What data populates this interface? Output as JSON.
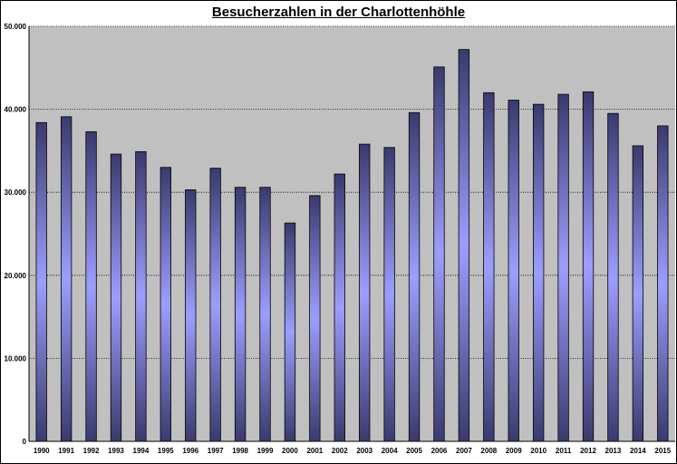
{
  "chart_data": {
    "type": "bar",
    "title": "Besucherzahlen in der Charlottenhöhle",
    "xlabel": "",
    "ylabel": "",
    "categories": [
      "1990",
      "1991",
      "1992",
      "1993",
      "1994",
      "1995",
      "1996",
      "1997",
      "1998",
      "1999",
      "2000",
      "2001",
      "2002",
      "2003",
      "2004",
      "2005",
      "2006",
      "2007",
      "2008",
      "2009",
      "2010",
      "2011",
      "2012",
      "2013",
      "2014",
      "2015"
    ],
    "values": [
      38400,
      39100,
      37300,
      34600,
      34900,
      33000,
      30300,
      32900,
      30600,
      30600,
      26300,
      29600,
      32200,
      35800,
      35400,
      39600,
      45100,
      47200,
      42000,
      41100,
      40600,
      41800,
      42100,
      39500,
      35600,
      38000
    ],
    "ylim": [
      0,
      50000
    ],
    "yticks": [
      0,
      10000,
      20000,
      30000,
      40000,
      50000
    ],
    "ytick_labels": [
      "0",
      "10.000",
      "20.000",
      "30.000",
      "40.000",
      "50.000"
    ],
    "grid": "horizontal dotted",
    "legend": "none",
    "colors": {
      "plot_background": "#c0c0c0",
      "bar_edge": "#3a3a6e",
      "bar_center": "#9d9dff",
      "gridline": "#000000"
    }
  }
}
